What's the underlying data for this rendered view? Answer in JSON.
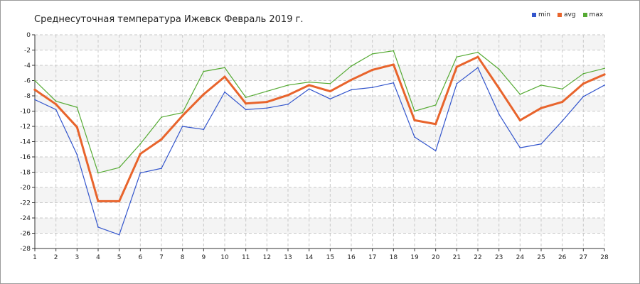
{
  "chart_data": {
    "type": "line",
    "title": "Среднесуточная температура Ижевск  Февраль 2019 г.",
    "xlabel": "",
    "ylabel": "",
    "x": [
      1,
      2,
      3,
      4,
      5,
      6,
      7,
      8,
      9,
      10,
      11,
      12,
      13,
      14,
      15,
      16,
      17,
      18,
      19,
      20,
      21,
      22,
      23,
      24,
      25,
      26,
      27,
      28
    ],
    "ylim": [
      -28,
      0
    ],
    "yticks": [
      0,
      -2,
      -4,
      -6,
      -8,
      -10,
      -12,
      -14,
      -16,
      -18,
      -20,
      -22,
      -24,
      -26,
      -28
    ],
    "grid": true,
    "legend_position": "top-right",
    "series": [
      {
        "name": "min",
        "color": "#3355cc",
        "values": [
          -8.5,
          -9.8,
          -15.7,
          -25.2,
          -26.2,
          -18.1,
          -17.5,
          -12.0,
          -12.4,
          -7.5,
          -9.8,
          -9.6,
          -9.1,
          -7.1,
          -8.4,
          -7.2,
          -6.9,
          -6.3,
          -13.4,
          -15.2,
          -6.4,
          -4.3,
          -10.4,
          -14.8,
          -14.3,
          -11.3,
          -8.1,
          -6.6
        ]
      },
      {
        "name": "avg",
        "color": "#e8642c",
        "values": [
          -7.2,
          -9.1,
          -12.1,
          -21.8,
          -21.8,
          -15.6,
          -13.7,
          -10.6,
          -7.8,
          -5.5,
          -9.0,
          -8.8,
          -7.9,
          -6.6,
          -7.4,
          -5.9,
          -4.6,
          -3.9,
          -11.2,
          -11.7,
          -4.2,
          -2.9,
          -7.0,
          -11.2,
          -9.6,
          -8.8,
          -6.4,
          -5.2
        ]
      },
      {
        "name": "max",
        "color": "#55aa33",
        "values": [
          -6.0,
          -8.7,
          -9.5,
          -18.1,
          -17.4,
          -14.3,
          -10.8,
          -10.2,
          -4.8,
          -4.3,
          -8.2,
          -7.4,
          -6.6,
          -6.2,
          -6.4,
          -4.1,
          -2.5,
          -2.1,
          -10.0,
          -9.2,
          -2.9,
          -2.3,
          -4.5,
          -7.8,
          -6.6,
          -7.1,
          -5.1,
          -4.4
        ]
      }
    ]
  }
}
